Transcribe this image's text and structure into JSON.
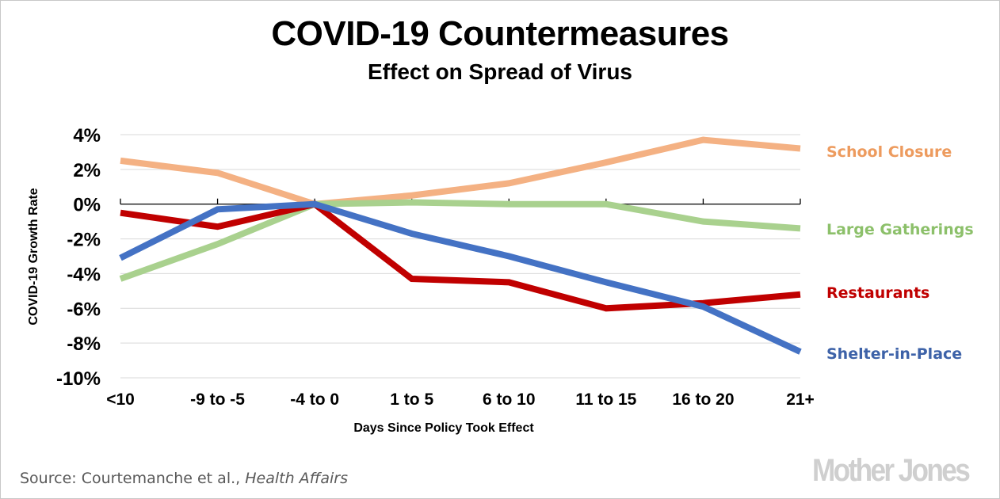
{
  "chart_data": {
    "type": "line",
    "title": "COVID-19 Countermeasures",
    "subtitle": "Effect on Spread of Virus",
    "xlabel": "Days Since Policy Took Effect",
    "ylabel": "COVID-19 Growth Rate",
    "categories": [
      "<10",
      "-9 to -5",
      "-4 to 0",
      "1 to 5",
      "6 to 10",
      "11 to 15",
      "16 to 20",
      "21+"
    ],
    "ylim": [
      -10,
      4
    ],
    "yticks": [
      4,
      2,
      0,
      -2,
      -4,
      -6,
      -8,
      -10
    ],
    "ytick_labels": [
      "4%",
      "2%",
      "0%",
      "-2%",
      "-4%",
      "-6%",
      "-8%",
      "-10%"
    ],
    "grid": true,
    "legend_placement": "right (direct labels)",
    "series": [
      {
        "name": "School Closure",
        "color": "#f4b183",
        "values": [
          2.5,
          1.8,
          0,
          0.5,
          1.2,
          2.4,
          3.7,
          3.2
        ]
      },
      {
        "name": "Large Gatherings",
        "color": "#a9d18e",
        "values": [
          -4.3,
          -2.3,
          0,
          0.1,
          0,
          0,
          -1.0,
          -1.4
        ]
      },
      {
        "name": "Restaurants",
        "color": "#c00000",
        "values": [
          -0.5,
          -1.3,
          0,
          -4.3,
          -4.5,
          -6.0,
          -5.7,
          -5.2
        ]
      },
      {
        "name": "Shelter-in-Place",
        "color": "#4472c4",
        "values": [
          -3.1,
          -0.3,
          0,
          -1.7,
          -3.0,
          -4.5,
          -5.9,
          -8.5
        ]
      }
    ]
  },
  "legend_colors": {
    "School Closure": "#ed9b5e",
    "Large Gatherings": "#8cc06a",
    "Restaurants": "#c00000",
    "Shelter-in-Place": "#3d62a8"
  },
  "footer": {
    "source_prefix": "Source: Courtemanche et al., ",
    "source_publication": "Health Affairs",
    "logo": "Mother Jones"
  }
}
